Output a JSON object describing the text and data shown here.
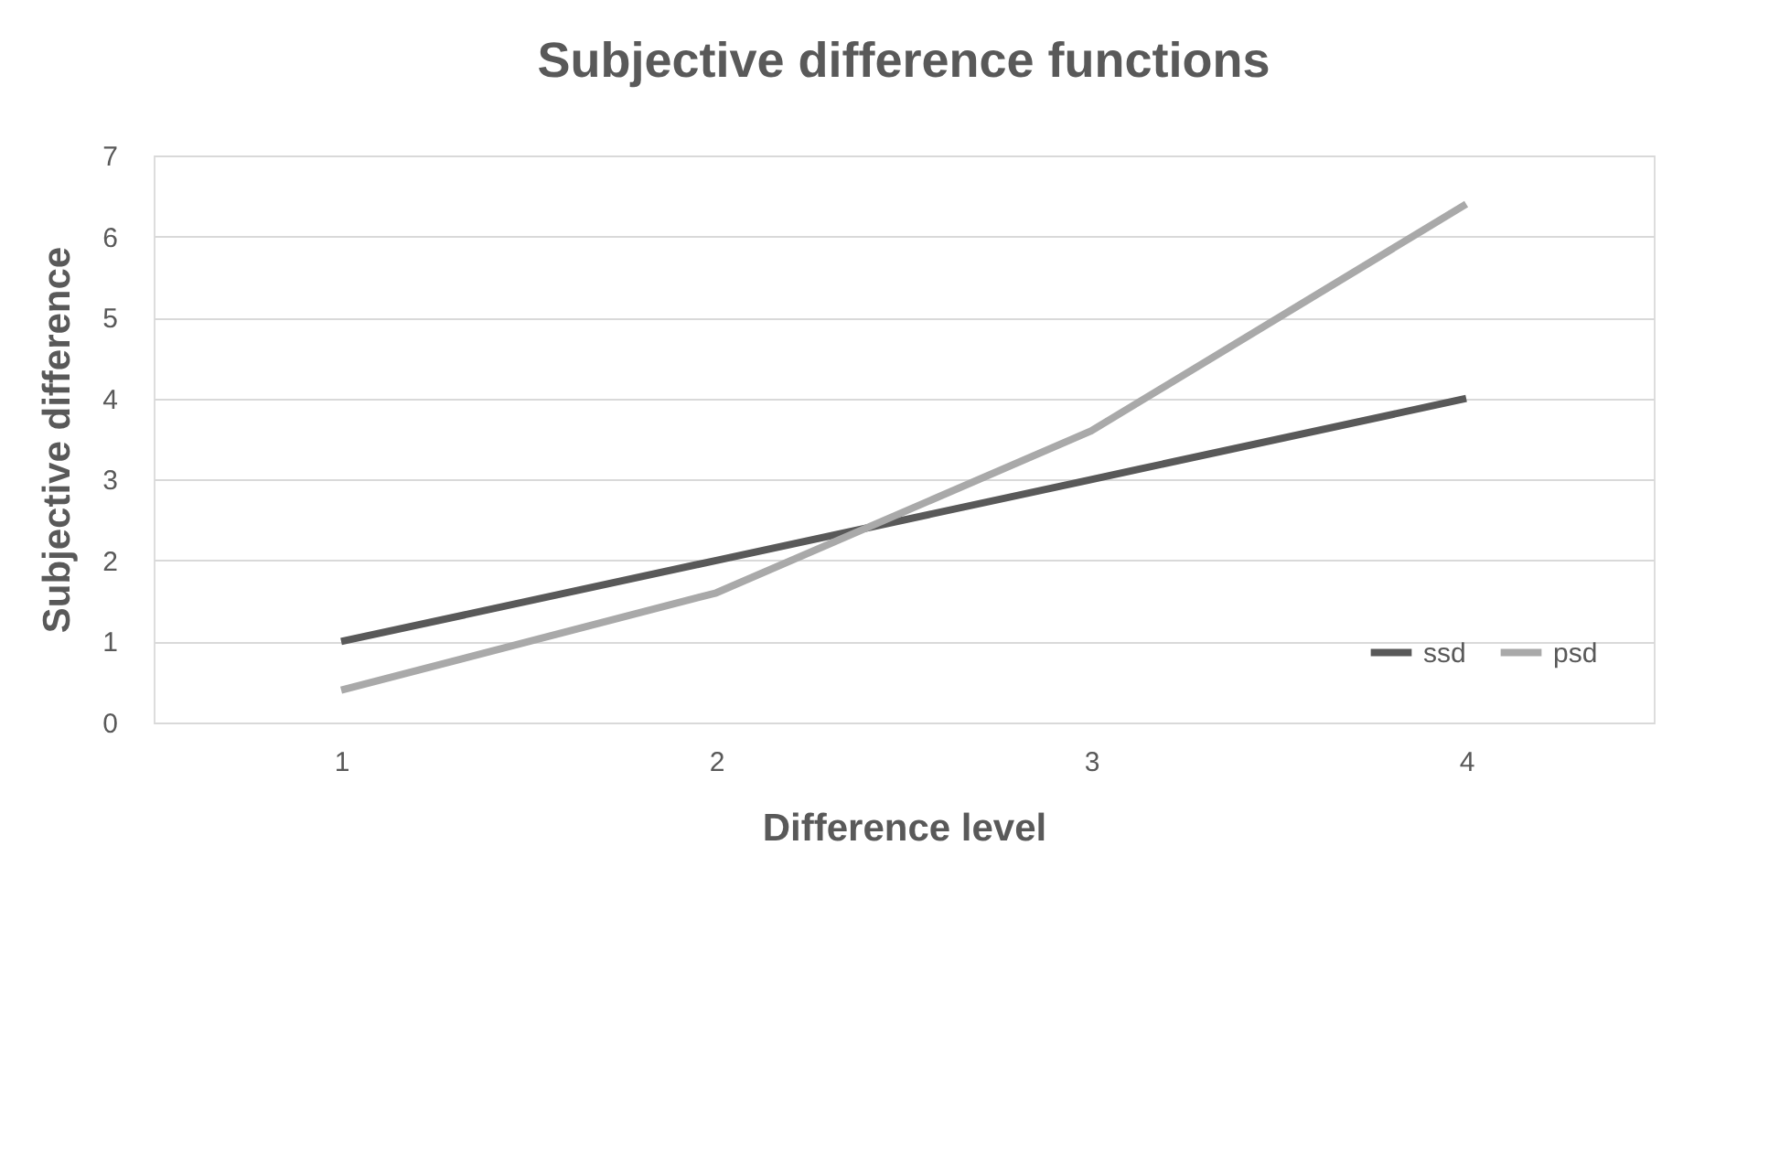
{
  "chart_data": {
    "type": "line",
    "title": "Subjective difference functions",
    "xlabel": "Difference level",
    "ylabel": "Subjective difference",
    "categories": [
      "1",
      "2",
      "3",
      "4"
    ],
    "series": [
      {
        "name": "ssd",
        "color": "#595959",
        "values": [
          1,
          2,
          3,
          4
        ]
      },
      {
        "name": "psd",
        "color": "#a9a9a9",
        "values": [
          0.4,
          1.6,
          3.6,
          6.4
        ]
      }
    ],
    "ylim": [
      0,
      7
    ],
    "yticks": [
      0,
      1,
      2,
      3,
      4,
      5,
      6,
      7
    ],
    "grid": "y",
    "legend": "bottom right",
    "marker": "none",
    "line_style": "solid"
  }
}
